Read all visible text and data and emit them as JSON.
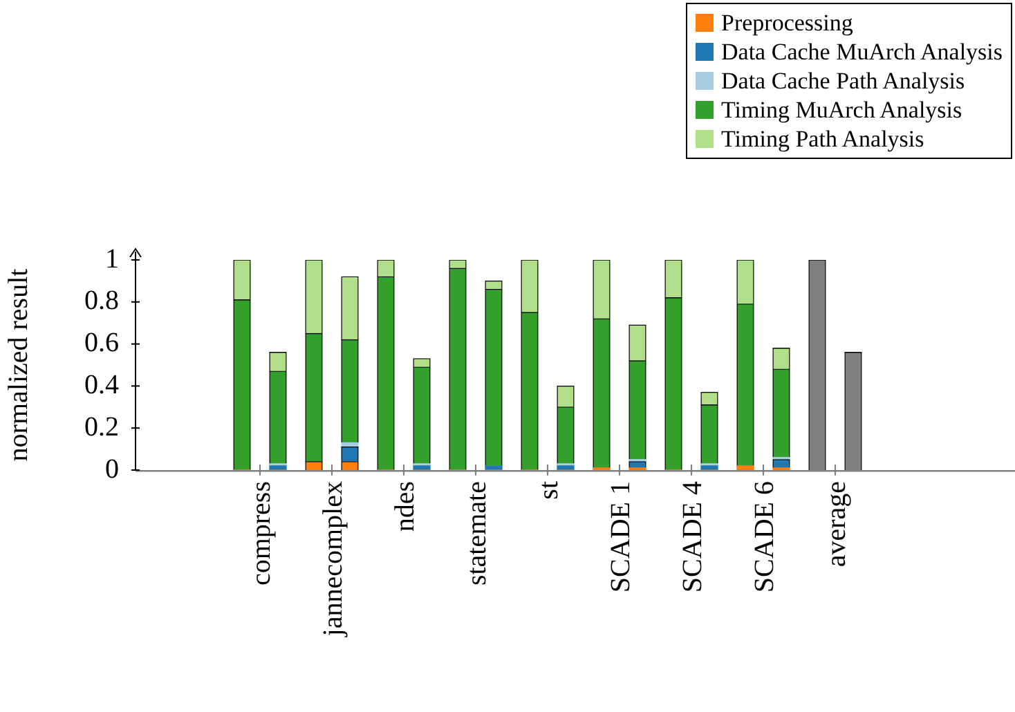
{
  "chart_data": {
    "type": "bar",
    "stacked": true,
    "ylabel": "normalized result",
    "legend": "top right",
    "grid": false,
    "categories": [
      "compress",
      null,
      "jannecomplex",
      null,
      "ndes",
      null,
      "statemate",
      null,
      "st",
      null,
      "SCADE 1",
      null,
      "SCADE 4",
      null,
      "SCADE 6",
      null,
      "average",
      null
    ],
    "series": [
      {
        "name": "Preprocessing",
        "color": "#ff7f0e",
        "values": [
          0,
          0,
          0.04,
          0.04,
          0,
          0,
          0,
          0,
          0,
          0,
          0.01,
          0.01,
          0,
          0,
          0.02,
          0.01,
          null,
          null
        ]
      },
      {
        "name": "Data Cache MuArch Analysis",
        "color": "#1f77b4",
        "values": [
          0,
          0.02,
          0,
          0.07,
          0,
          0.02,
          0,
          0.02,
          0,
          0.02,
          0,
          0.03,
          0,
          0.02,
          0,
          0.04,
          null,
          null
        ]
      },
      {
        "name": "Data Cache Path Analysis",
        "color": "#a6cee3",
        "values": [
          0,
          0.01,
          0,
          0.02,
          0,
          0.01,
          0,
          0,
          0,
          0.01,
          0,
          0.01,
          0,
          0.01,
          0,
          0.01,
          null,
          null
        ]
      },
      {
        "name": "Timing MuArch Analysis",
        "color": "#33a02c",
        "values": [
          0.81,
          0.44,
          0.61,
          0.49,
          0.92,
          0.46,
          0.96,
          0.84,
          0.75,
          0.27,
          0.71,
          0.47,
          0.82,
          0.28,
          0.77,
          0.42,
          null,
          null
        ]
      },
      {
        "name": "Timing Path Analysis",
        "color": "#b2df8a",
        "values": [
          0.19,
          0.09,
          0.35,
          0.3,
          0.08,
          0.04,
          0.04,
          0.04,
          0.25,
          0.1,
          0.28,
          0.17,
          0.18,
          0.06,
          0.21,
          0.1,
          null,
          null
        ]
      },
      {
        "color": "#808080",
        "values": [
          null,
          null,
          null,
          null,
          null,
          null,
          null,
          null,
          null,
          null,
          null,
          null,
          null,
          null,
          null,
          null,
          1,
          0.56
        ]
      }
    ],
    "ylim": [
      0,
      1
    ],
    "yticks": [
      0,
      0.2,
      0.4,
      0.6,
      0.8,
      1
    ]
  }
}
